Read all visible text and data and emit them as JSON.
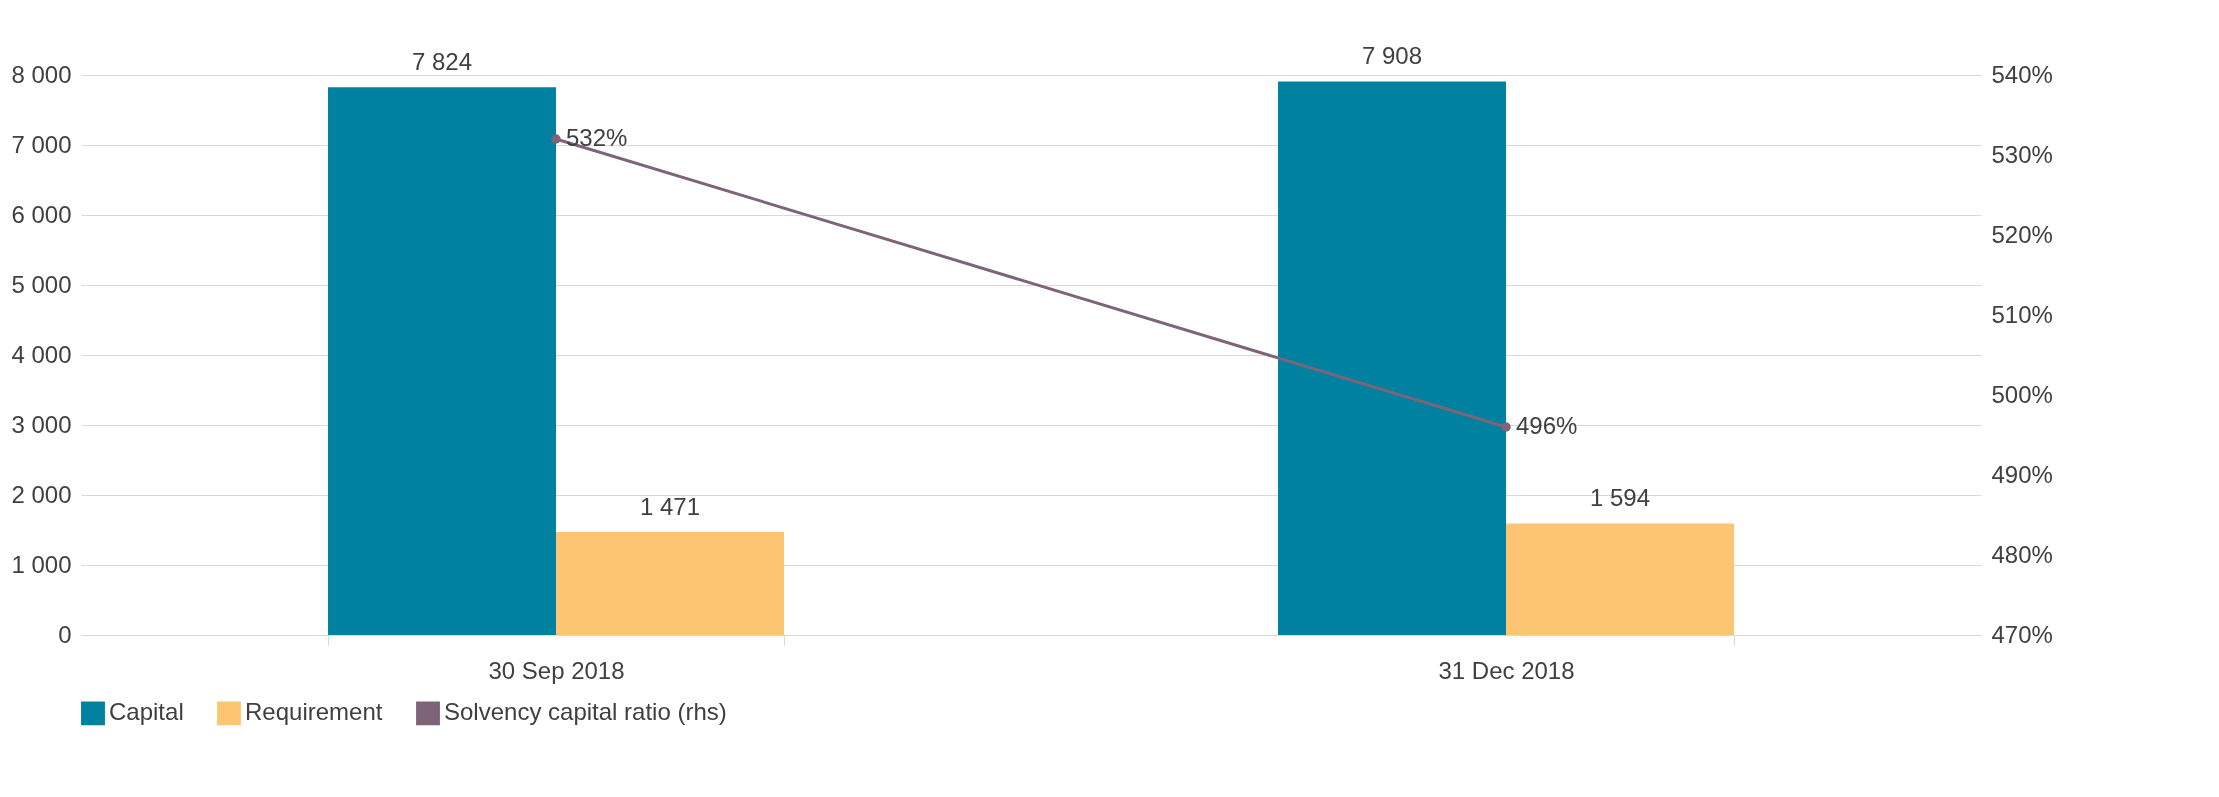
{
  "chart_data": {
    "type": "bar",
    "categories": [
      "30 Sep 2018",
      "31 Dec 2018"
    ],
    "series": [
      {
        "name": "Capital",
        "color": "#00819f",
        "values": [
          7824,
          7908
        ],
        "value_labels": [
          "7 824",
          "7 908"
        ]
      },
      {
        "name": "Requirement",
        "color": "#fcc572",
        "values": [
          1471,
          1594
        ],
        "value_labels": [
          "1 471",
          "1 594"
        ]
      },
      {
        "name": "Solvency capital ratio (rhs)",
        "type": "line",
        "axis": "y2",
        "color": "#7e6478",
        "values": [
          532,
          496
        ],
        "value_labels": [
          "532%",
          "496%"
        ]
      }
    ],
    "ylim": [
      0,
      8000
    ],
    "yticks": [
      0,
      {
        "value": 1000,
        "label": "1 000"
      },
      {
        "value": 2000,
        "label": "2 000"
      },
      {
        "value": 3000,
        "label": "3 000"
      },
      {
        "value": 4000,
        "label": "4 000"
      },
      {
        "value": 5000,
        "label": "5 000"
      },
      {
        "value": 6000,
        "label": "6 000"
      },
      {
        "value": 7000,
        "label": "7 000"
      },
      {
        "value": 8000,
        "label": "8 000"
      }
    ],
    "y2lim": [
      470,
      540
    ],
    "y2ticks": [
      {
        "value": 470,
        "label": "470%"
      },
      {
        "value": 480,
        "label": "480%"
      },
      {
        "value": 490,
        "label": "490%"
      },
      {
        "value": 500,
        "label": "500%"
      },
      {
        "value": 510,
        "label": "510%"
      },
      {
        "value": 520,
        "label": "520%"
      },
      {
        "value": 530,
        "label": "530%"
      },
      {
        "value": 540,
        "label": "540%"
      }
    ],
    "grid": "y",
    "legend": "bottom",
    "marker": "circle"
  }
}
